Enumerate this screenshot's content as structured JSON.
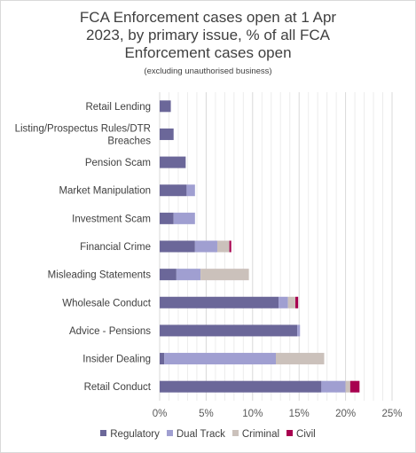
{
  "chart_data": {
    "type": "bar",
    "orientation": "horizontal",
    "stacked": true,
    "title": "FCA Enforcement cases open at 1 Apr 2023, by primary issue, % of all FCA Enforcement cases open",
    "title_lines": [
      "FCA Enforcement cases open at 1 Apr",
      "2023, by primary issue, % of all FCA",
      "Enforcement cases open"
    ],
    "subtitle": "(excluding unauthorised business)",
    "categories": [
      "Retail Lending",
      "Listing/Prospectus Rules/DTR Breaches",
      "Pension Scam",
      "Market Manipulation",
      "Investment Scam",
      "Financial Crime",
      "Misleading Statements",
      "Wholesale Conduct",
      "Advice - Pensions",
      "Insider Dealing",
      "Retail Conduct"
    ],
    "category_label_lines": [
      [
        "Retail Lending"
      ],
      [
        "Listing/Prospectus Rules/DTR",
        "Breaches"
      ],
      [
        "Pension Scam"
      ],
      [
        "Market Manipulation"
      ],
      [
        "Investment Scam"
      ],
      [
        "Financial Crime"
      ],
      [
        "Misleading Statements"
      ],
      [
        "Wholesale Conduct"
      ],
      [
        "Advice - Pensions"
      ],
      [
        "Insider Dealing"
      ],
      [
        "Retail Conduct"
      ]
    ],
    "series": [
      {
        "name": "Regulatory",
        "color": "#6b6799",
        "values": [
          1.2,
          1.5,
          2.8,
          2.9,
          1.5,
          3.8,
          1.8,
          12.8,
          14.8,
          0.5,
          17.4
        ]
      },
      {
        "name": "Dual Track",
        "color": "#a09fd1",
        "values": [
          0,
          0,
          0,
          0.9,
          2.3,
          2.4,
          2.6,
          1.0,
          0.3,
          12.0,
          2.6
        ]
      },
      {
        "name": "Criminal",
        "color": "#cbc1bb",
        "values": [
          0,
          0,
          0,
          0,
          0,
          1.3,
          5.2,
          0.8,
          0,
          5.2,
          0.5
        ]
      },
      {
        "name": "Civil",
        "color": "#a8004f",
        "values": [
          0,
          0,
          0,
          0,
          0,
          0.2,
          0,
          0.3,
          0,
          0,
          1.0
        ]
      }
    ],
    "xlim": [
      0,
      25
    ],
    "xticks": [
      "0%",
      "5%",
      "10%",
      "15%",
      "20%",
      "25%"
    ],
    "grid": true,
    "legend_position": "bottom"
  }
}
